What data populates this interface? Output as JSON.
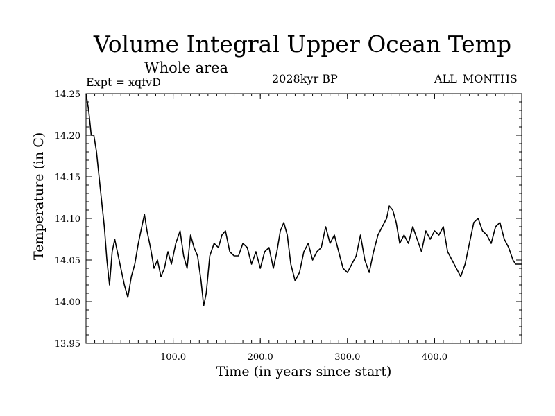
{
  "chart_data": {
    "type": "line",
    "title": "Volume Integral Upper Ocean Temp",
    "subtitle": "Whole area",
    "experiment": "Expt = xqfvD",
    "period": "2028kyr BP",
    "months": "ALL_MONTHS",
    "xlabel": "Time (in years since start)",
    "ylabel": "Temperature (in C)",
    "xlim": [
      0,
      500
    ],
    "ylim": [
      13.95,
      14.25
    ],
    "xticks": [
      100,
      200,
      300,
      400
    ],
    "xtick_labels": [
      "100.0",
      "200.0",
      "300.0",
      "400.0"
    ],
    "yticks": [
      13.95,
      14.0,
      14.05,
      14.1,
      14.15,
      14.2,
      14.25
    ],
    "ytick_labels": [
      "13.95",
      "14.00",
      "14.05",
      "14.10",
      "14.15",
      "14.20",
      "14.25"
    ],
    "grid": false,
    "series": [
      {
        "name": "Temperature",
        "x": [
          0,
          3,
          6,
          9,
          12,
          15,
          18,
          21,
          24,
          27,
          30,
          33,
          36,
          40,
          44,
          48,
          52,
          56,
          60,
          64,
          67,
          70,
          74,
          78,
          82,
          86,
          90,
          94,
          98,
          103,
          108,
          112,
          116,
          120,
          124,
          128,
          132,
          135,
          138,
          142,
          147,
          152,
          156,
          160,
          165,
          170,
          175,
          180,
          185,
          190,
          195,
          200,
          205,
          210,
          215,
          219,
          223,
          227,
          231,
          235,
          240,
          245,
          250,
          255,
          260,
          265,
          270,
          275,
          280,
          285,
          290,
          295,
          300,
          305,
          310,
          315,
          320,
          325,
          330,
          335,
          340,
          345,
          348,
          352,
          356,
          360,
          365,
          370,
          375,
          380,
          385,
          390,
          395,
          400,
          405,
          410,
          415,
          420,
          425,
          430,
          435,
          440,
          445,
          450,
          455,
          460,
          465,
          470,
          475,
          480,
          485,
          490,
          493,
          496,
          500
        ],
        "values": [
          14.25,
          14.23,
          14.2,
          14.2,
          14.18,
          14.15,
          14.12,
          14.09,
          14.05,
          14.02,
          14.06,
          14.075,
          14.06,
          14.04,
          14.02,
          14.005,
          14.03,
          14.045,
          14.07,
          14.09,
          14.105,
          14.085,
          14.065,
          14.04,
          14.05,
          14.03,
          14.04,
          14.06,
          14.045,
          14.07,
          14.085,
          14.055,
          14.04,
          14.08,
          14.065,
          14.055,
          14.025,
          13.995,
          14.01,
          14.055,
          14.07,
          14.065,
          14.08,
          14.085,
          14.06,
          14.055,
          14.055,
          14.07,
          14.065,
          14.045,
          14.06,
          14.04,
          14.06,
          14.065,
          14.04,
          14.06,
          14.085,
          14.095,
          14.08,
          14.045,
          14.025,
          14.035,
          14.06,
          14.07,
          14.05,
          14.06,
          14.065,
          14.09,
          14.07,
          14.08,
          14.06,
          14.04,
          14.035,
          14.045,
          14.055,
          14.08,
          14.05,
          14.035,
          14.06,
          14.08,
          14.09,
          14.1,
          14.115,
          14.11,
          14.095,
          14.07,
          14.08,
          14.07,
          14.09,
          14.075,
          14.06,
          14.085,
          14.075,
          14.085,
          14.08,
          14.09,
          14.06,
          14.05,
          14.04,
          14.03,
          14.045,
          14.07,
          14.095,
          14.1,
          14.085,
          14.08,
          14.07,
          14.09,
          14.095,
          14.075,
          14.065,
          14.05,
          14.045,
          14.045,
          14.045
        ]
      }
    ]
  }
}
